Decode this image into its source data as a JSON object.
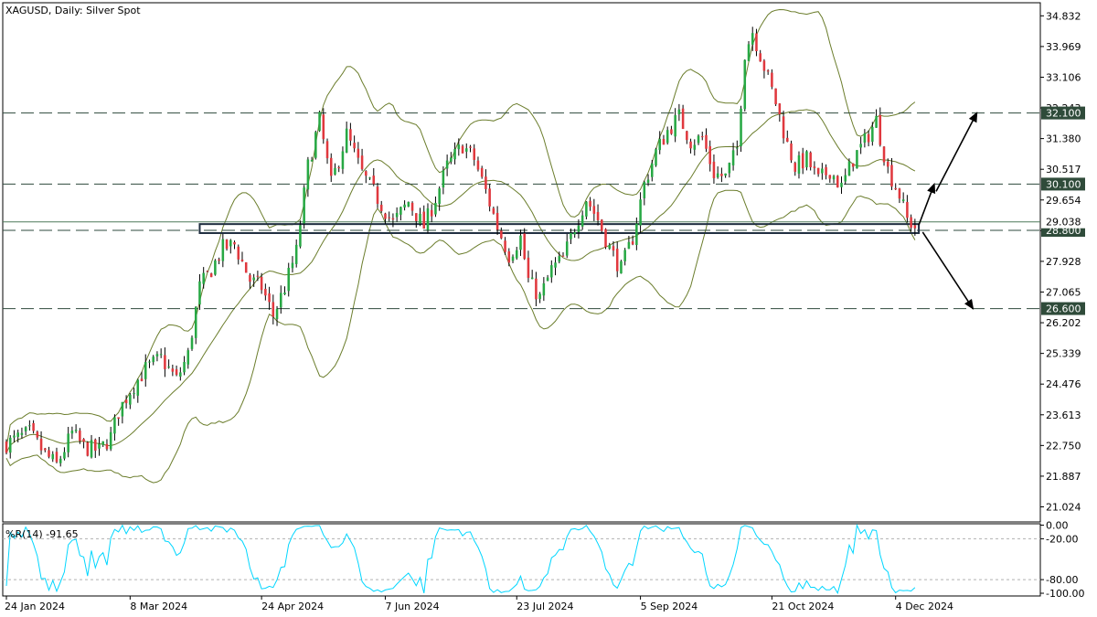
{
  "chart_data": [
    {
      "type": "candlestick",
      "title": "XAGUSD, Daily:  Silver Spot",
      "ylim": [
        20.6,
        35.2
      ],
      "price_ticks": [
        "34.832",
        "33.969",
        "33.106",
        "32.243",
        "31.380",
        "30.517",
        "29.654",
        "28.791",
        "27.928",
        "27.065",
        "26.202",
        "25.339",
        "24.476",
        "23.613",
        "22.750",
        "21.887",
        "21.024"
      ],
      "price_tick_values": [
        34.832,
        33.969,
        33.106,
        32.243,
        31.38,
        30.517,
        29.654,
        28.791,
        27.928,
        27.065,
        26.202,
        25.339,
        24.476,
        23.613,
        22.75,
        21.887,
        21.024
      ],
      "date_labels": [
        "24 Jan 2024",
        "8 Mar 2024",
        "24 Apr 2024",
        "7 Jun 2024",
        "23 Jul 2024",
        "5 Sep 2024",
        "21 Oct 2024",
        "4 Dec 2024"
      ],
      "date_label_bar_index": [
        0,
        32,
        66,
        98,
        132,
        164,
        198,
        230
      ],
      "bar_count": 240,
      "close_path": [
        [
          0,
          22.8
        ],
        [
          6,
          23.1
        ],
        [
          10,
          22.5
        ],
        [
          13,
          22.2
        ],
        [
          17,
          23.1
        ],
        [
          20,
          22.7
        ],
        [
          24,
          22.6
        ],
        [
          27,
          23.0
        ],
        [
          29,
          23.7
        ],
        [
          32,
          24.3
        ],
        [
          36,
          24.9
        ],
        [
          40,
          25.2
        ],
        [
          44,
          24.6
        ],
        [
          47,
          25.3
        ],
        [
          50,
          27.2
        ],
        [
          53,
          27.7
        ],
        [
          56,
          28.3
        ],
        [
          59,
          28.4
        ],
        [
          63,
          27.4
        ],
        [
          66,
          27.2
        ],
        [
          69,
          26.4
        ],
        [
          72,
          27.2
        ],
        [
          75,
          28.2
        ],
        [
          78,
          30.6
        ],
        [
          81,
          31.9
        ],
        [
          84,
          30.1
        ],
        [
          88,
          31.5
        ],
        [
          92,
          30.4
        ],
        [
          96,
          29.7
        ],
        [
          100,
          29.0
        ],
        [
          104,
          29.6
        ],
        [
          108,
          28.9
        ],
        [
          111,
          29.7
        ],
        [
          114,
          30.6
        ],
        [
          118,
          31.2
        ],
        [
          121,
          30.8
        ],
        [
          124,
          29.9
        ],
        [
          127,
          28.9
        ],
        [
          130,
          28.1
        ],
        [
          133,
          28.6
        ],
        [
          135,
          27.4
        ],
        [
          138,
          26.9
        ],
        [
          141,
          27.7
        ],
        [
          144,
          28.0
        ],
        [
          147,
          28.9
        ],
        [
          150,
          29.7
        ],
        [
          153,
          29.1
        ],
        [
          156,
          28.3
        ],
        [
          159,
          27.7
        ],
        [
          162,
          28.6
        ],
        [
          165,
          30.1
        ],
        [
          168,
          31.0
        ],
        [
          171,
          31.6
        ],
        [
          174,
          32.0
        ],
        [
          177,
          31.3
        ],
        [
          180,
          31.4
        ],
        [
          183,
          30.4
        ],
        [
          186,
          30.3
        ],
        [
          189,
          31.1
        ],
        [
          191,
          33.8
        ],
        [
          193,
          34.4
        ],
        [
          196,
          33.4
        ],
        [
          199,
          32.4
        ],
        [
          202,
          31.2
        ],
        [
          204,
          30.6
        ],
        [
          207,
          30.8
        ],
        [
          210,
          30.2
        ],
        [
          213,
          30.5
        ],
        [
          216,
          30.0
        ],
        [
          219,
          30.8
        ],
        [
          222,
          31.3
        ],
        [
          225,
          31.9
        ],
        [
          228,
          30.5
        ],
        [
          231,
          29.8
        ],
        [
          233,
          29.1
        ],
        [
          235,
          28.9
        ]
      ],
      "body_volatility": 0.32,
      "wick_volatility": 0.22,
      "bollinger_period": 20,
      "bollinger_deviation": 2,
      "levels": [
        {
          "value": 32.1,
          "label": "32.100"
        },
        {
          "value": 30.1,
          "label": "30.100"
        },
        {
          "value": 28.8,
          "label": "28.800"
        },
        {
          "value": 26.6,
          "label": "26.600"
        }
      ],
      "current_price_label": "29.038",
      "current_price": 29.038,
      "hidden_tick_label": "32.243",
      "support_zone": {
        "low": 28.8,
        "high": 28.95,
        "from_bar": 50,
        "to_bar": 236
      },
      "projection_arrows": [
        {
          "from": [
            236,
            28.95
          ],
          "to": [
            240,
            30.1
          ],
          "then_to": [
            251,
            32.1
          ],
          "direction": "up"
        },
        {
          "from": [
            237,
            28.75
          ],
          "to": [
            250,
            26.6
          ],
          "direction": "down"
        }
      ],
      "colors": {
        "bull": "#27a844",
        "bear": "#e0383e",
        "band": "#6b7d2c",
        "level": "#2e4a3c",
        "label_bg": "#2f4b3a",
        "label_text": "#ffffff",
        "wick": "#000000"
      }
    },
    {
      "type": "line",
      "title": "%R(14) -91.65",
      "indicator": "%R",
      "period": 14,
      "last_value": -91.65,
      "ylim": [
        -104,
        2
      ],
      "ticks": [
        "0.00",
        "-20.00",
        "-80.00",
        "-100.00"
      ],
      "tick_values": [
        0,
        -20,
        -80,
        -100
      ],
      "levels": [
        -20,
        -80
      ],
      "colors": {
        "line": "#00d6ff",
        "level": "#b0b0b0"
      }
    }
  ]
}
